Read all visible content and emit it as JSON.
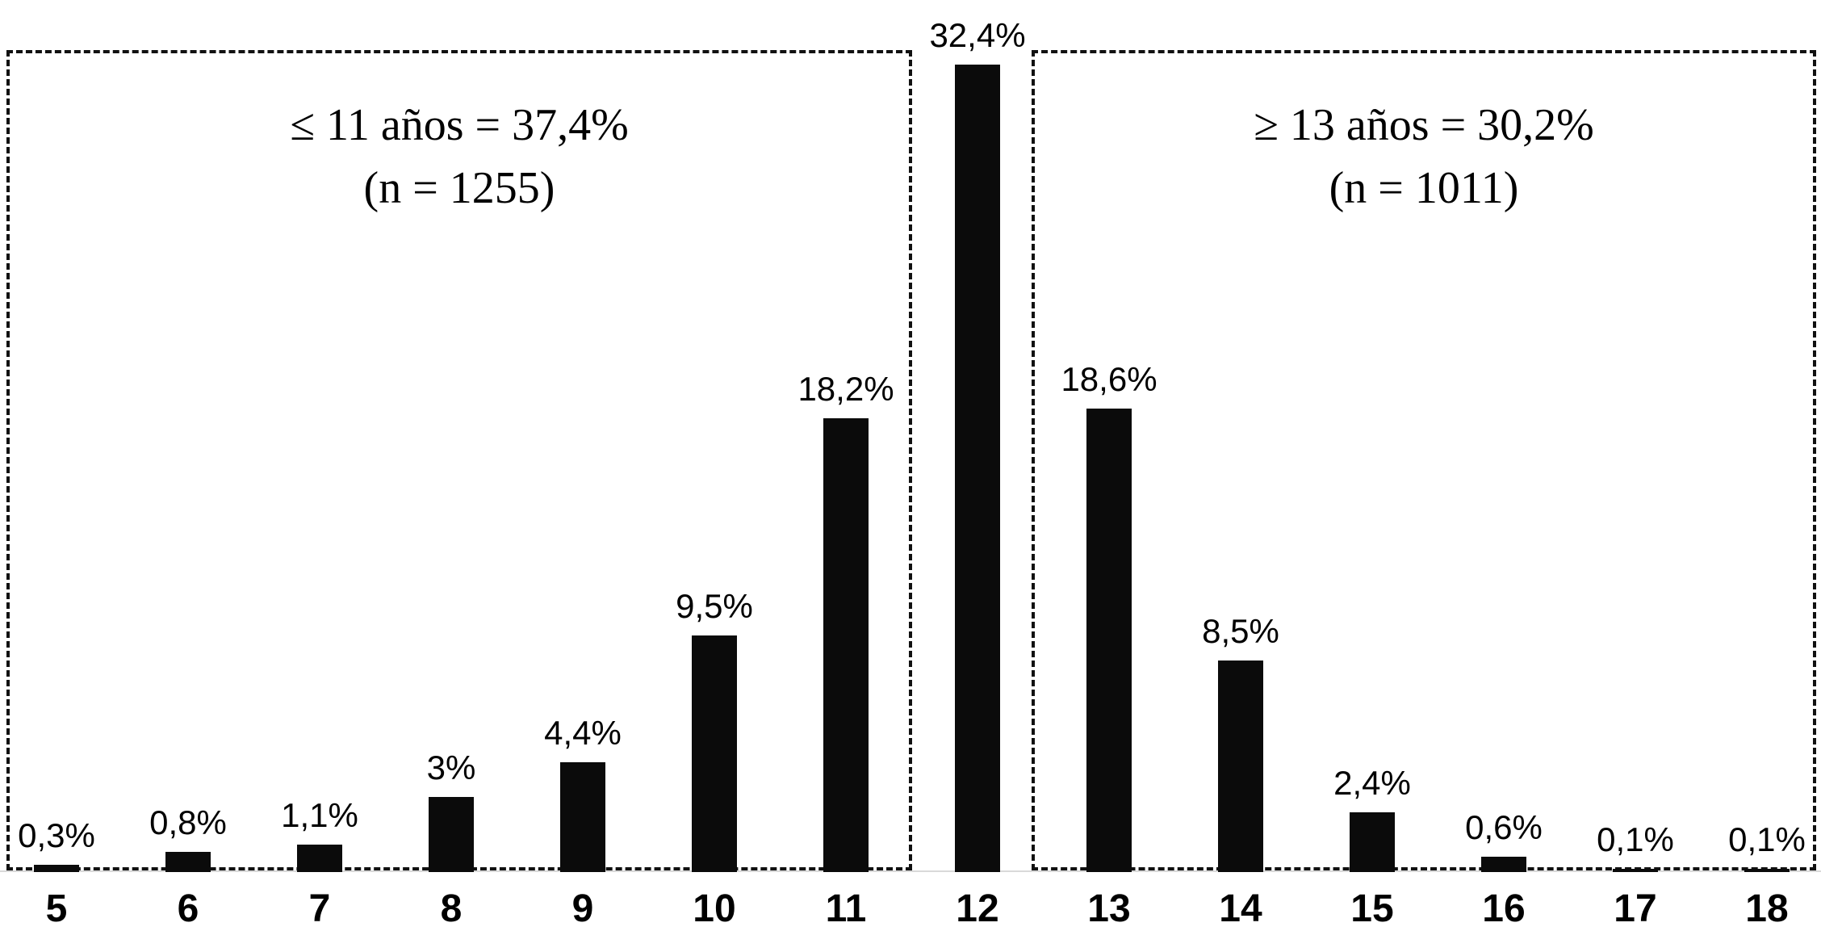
{
  "chart_data": {
    "type": "bar",
    "title": "",
    "xlabel": "",
    "ylabel": "",
    "categories": [
      "5",
      "6",
      "7",
      "8",
      "9",
      "10",
      "11",
      "12",
      "13",
      "14",
      "15",
      "16",
      "17",
      "18"
    ],
    "values": [
      0.3,
      0.8,
      1.1,
      3,
      4.4,
      9.5,
      18.2,
      32.4,
      18.6,
      8.5,
      2.4,
      0.6,
      0.1,
      0.1
    ],
    "value_labels": [
      "0,3%",
      "0,8%",
      "1,1%",
      "3%",
      "4,4%",
      "9,5%",
      "18,2%",
      "32,4%",
      "18,6%",
      "8,5%",
      "2,4%",
      "0,6%",
      "0,1%",
      "0,1%"
    ],
    "ylim": [
      0,
      33
    ],
    "grid": false,
    "legend_position": "none",
    "bar_color": "#0b0b0b",
    "annotations": [
      {
        "id": "left-group",
        "lines": [
          "≤ 11 años = 37,4%",
          "(n = 1255)"
        ],
        "covers_categories": [
          "5",
          "11"
        ]
      },
      {
        "id": "right-group",
        "lines": [
          "≥ 13 años = 30,2%",
          "(n = 1011)"
        ],
        "covers_categories": [
          "13",
          "18"
        ]
      }
    ]
  }
}
